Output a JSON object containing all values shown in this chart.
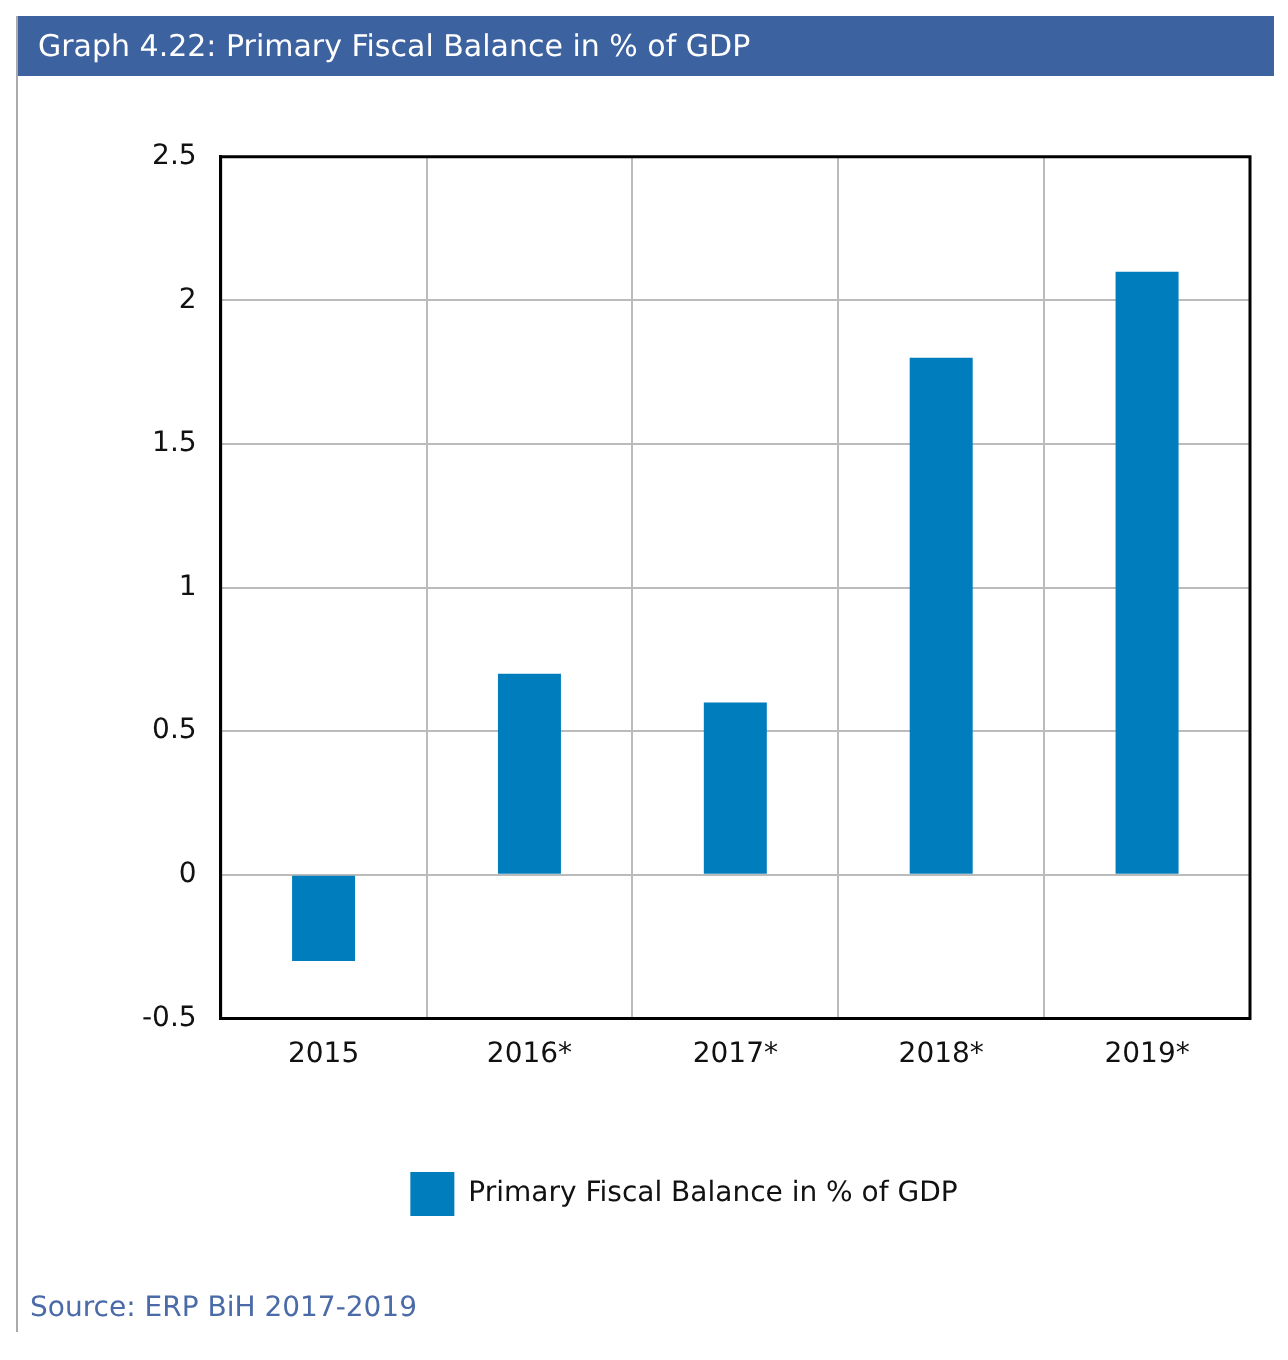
{
  "chart_data": {
    "type": "bar",
    "title": "Graph 4.22: Primary Fiscal Balance in % of GDP",
    "categories": [
      "2015",
      "2016*",
      "2017*",
      "2018*",
      "2019*"
    ],
    "series": [
      {
        "name": "Primary Fiscal Balance in % of GDP",
        "color": "#007dbc",
        "values": [
          -0.3,
          0.7,
          0.6,
          1.8,
          2.1
        ]
      }
    ],
    "ylim": [
      -0.5,
      2.5
    ],
    "yticks": [
      -0.5,
      0,
      0.5,
      1,
      1.5,
      2,
      2.5
    ],
    "grid": true,
    "legend": "bottom",
    "annotations": [
      "Source: ERP BiH 2017-2019"
    ]
  }
}
